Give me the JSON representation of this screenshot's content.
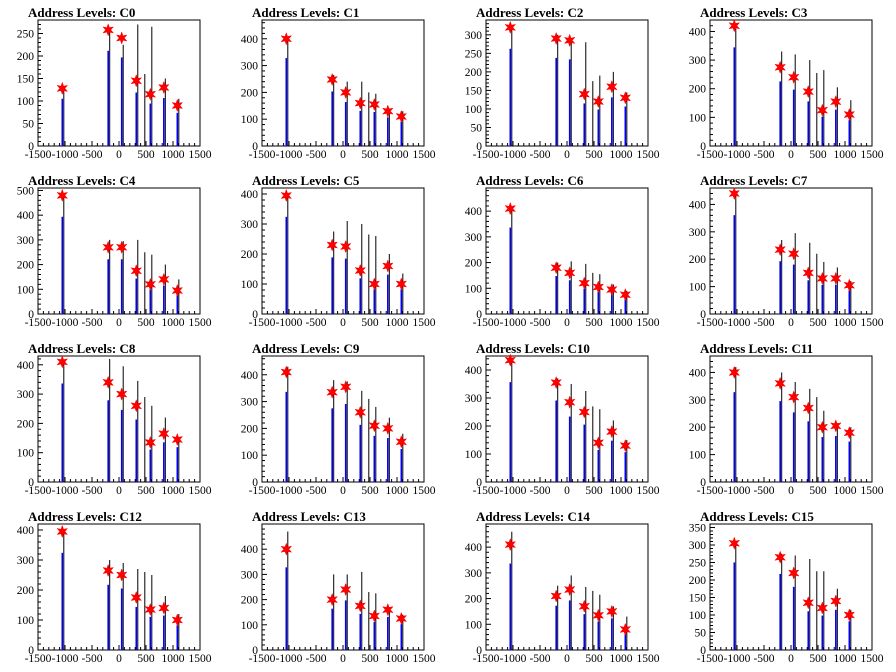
{
  "chart_data": [
    {
      "type": "bar",
      "title": "Address Levels: C0",
      "xlim": [
        -1500,
        1500
      ],
      "ylim": [
        0,
        280
      ],
      "xticks": [
        "-1500",
        "-1000",
        "-500",
        "0",
        "500",
        "1000",
        "1500"
      ],
      "yticks": [
        0,
        50,
        100,
        150,
        200,
        250
      ],
      "peaks_x": [
        -1050,
        -200,
        50,
        320,
        580,
        830,
        1080
      ],
      "peaks_y": [
        128,
        258,
        240,
        145,
        115,
        130,
        90
      ],
      "black_y": [
        122,
        262,
        225,
        270,
        160,
        265,
        150,
        105
      ]
    },
    {
      "type": "bar",
      "title": "Address Levels: C1",
      "xlim": [
        -1500,
        1500
      ],
      "ylim": [
        0,
        470
      ],
      "xticks": [
        "-1500",
        "-1000",
        "-500",
        "0",
        "500",
        "1000",
        "1500"
      ],
      "yticks": [
        0,
        100,
        200,
        300,
        400
      ],
      "peaks_x": [
        -1050,
        -200,
        50,
        320,
        580,
        830,
        1080
      ],
      "peaks_y": [
        400,
        248,
        200,
        160,
        155,
        130,
        110
      ],
      "black_y": [
        395,
        265,
        240,
        240,
        200,
        195,
        140,
        130
      ]
    },
    {
      "type": "bar",
      "title": "Address Levels: C2",
      "xlim": [
        -1500,
        1500
      ],
      "ylim": [
        0,
        340
      ],
      "xticks": [
        "-1500",
        "-1000",
        "-500",
        "0",
        "500",
        "1000",
        "1500"
      ],
      "yticks": [
        0,
        50,
        100,
        150,
        200,
        250,
        300
      ],
      "peaks_x": [
        -1050,
        -200,
        50,
        320,
        580,
        830,
        1080
      ],
      "peaks_y": [
        320,
        290,
        285,
        140,
        120,
        160,
        130
      ],
      "black_y": [
        320,
        300,
        285,
        280,
        175,
        190,
        200,
        145
      ]
    },
    {
      "type": "bar",
      "title": "Address Levels: C3",
      "xlim": [
        -1500,
        1500
      ],
      "ylim": [
        0,
        440
      ],
      "xticks": [
        "-1500",
        "-1000",
        "-500",
        "0",
        "500",
        "1000",
        "1500"
      ],
      "yticks": [
        0,
        100,
        200,
        300,
        400
      ],
      "peaks_x": [
        -1050,
        -200,
        50,
        320,
        580,
        830,
        1080
      ],
      "peaks_y": [
        420,
        275,
        240,
        190,
        125,
        155,
        110
      ],
      "black_y": [
        410,
        330,
        320,
        300,
        255,
        265,
        205,
        160
      ]
    },
    {
      "type": "bar",
      "title": "Address Levels: C4",
      "xlim": [
        -1500,
        1500
      ],
      "ylim": [
        0,
        510
      ],
      "xticks": [
        "-1500",
        "-1000",
        "-500",
        "0",
        "500",
        "1000",
        "1500"
      ],
      "yticks": [
        0,
        100,
        200,
        300,
        400,
        500
      ],
      "peaks_x": [
        -1050,
        -200,
        50,
        320,
        580,
        830,
        1080
      ],
      "peaks_y": [
        480,
        270,
        270,
        175,
        120,
        140,
        95
      ],
      "black_y": [
        485,
        300,
        295,
        300,
        250,
        240,
        200,
        140
      ]
    },
    {
      "type": "bar",
      "title": "Address Levels: C5",
      "xlim": [
        -1500,
        1500
      ],
      "ylim": [
        0,
        420
      ],
      "xticks": [
        "-1500",
        "-1000",
        "-500",
        "0",
        "500",
        "1000",
        "1500"
      ],
      "yticks": [
        0,
        100,
        200,
        300,
        400
      ],
      "peaks_x": [
        -1050,
        -200,
        50,
        320,
        580,
        830,
        1080
      ],
      "peaks_y": [
        395,
        230,
        225,
        145,
        100,
        160,
        100
      ],
      "black_y": [
        395,
        275,
        310,
        300,
        265,
        260,
        200,
        135
      ]
    },
    {
      "type": "bar",
      "title": "Address Levels: C6",
      "xlim": [
        -1500,
        1500
      ],
      "ylim": [
        0,
        490
      ],
      "xticks": [
        "-1500",
        "-1000",
        "-500",
        "0",
        "500",
        "1000",
        "1500"
      ],
      "yticks": [
        0,
        100,
        200,
        300,
        400
      ],
      "peaks_x": [
        -1050,
        -200,
        50,
        320,
        580,
        830,
        1080
      ],
      "peaks_y": [
        410,
        180,
        160,
        120,
        105,
        95,
        75
      ],
      "black_y": [
        410,
        200,
        205,
        195,
        160,
        155,
        115,
        90
      ]
    },
    {
      "type": "bar",
      "title": "Address Levels: C7",
      "xlim": [
        -1500,
        1500
      ],
      "ylim": [
        0,
        460
      ],
      "xticks": [
        "-1500",
        "-1000",
        "-500",
        "0",
        "500",
        "1000",
        "1500"
      ],
      "yticks": [
        0,
        100,
        200,
        300,
        400
      ],
      "peaks_x": [
        -1050,
        -200,
        50,
        320,
        580,
        830,
        1080
      ],
      "peaks_y": [
        440,
        235,
        220,
        150,
        130,
        130,
        105
      ],
      "black_y": [
        440,
        270,
        295,
        260,
        220,
        190,
        170,
        120
      ]
    },
    {
      "type": "bar",
      "title": "Address Levels: C8",
      "xlim": [
        -1500,
        1500
      ],
      "ylim": [
        0,
        430
      ],
      "xticks": [
        "-1500",
        "-1000",
        "-500",
        "0",
        "500",
        "1000",
        "1500"
      ],
      "yticks": [
        0,
        100,
        200,
        300,
        400
      ],
      "peaks_x": [
        -1050,
        -200,
        50,
        320,
        580,
        830,
        1080
      ],
      "peaks_y": [
        410,
        340,
        300,
        260,
        135,
        165,
        145
      ],
      "black_y": [
        410,
        420,
        395,
        345,
        290,
        260,
        220,
        150
      ]
    },
    {
      "type": "bar",
      "title": "Address Levels: C9",
      "xlim": [
        -1500,
        1500
      ],
      "ylim": [
        0,
        470
      ],
      "xticks": [
        "-1500",
        "-1000",
        "-500",
        "0",
        "500",
        "1000",
        "1500"
      ],
      "yticks": [
        0,
        100,
        200,
        300,
        400
      ],
      "peaks_x": [
        -1050,
        -200,
        50,
        320,
        580,
        830,
        1080
      ],
      "peaks_y": [
        410,
        335,
        355,
        260,
        210,
        200,
        150
      ],
      "black_y": [
        430,
        380,
        375,
        340,
        310,
        280,
        240,
        180
      ]
    },
    {
      "type": "bar",
      "title": "Address Levels: C10",
      "xlim": [
        -1500,
        1500
      ],
      "ylim": [
        0,
        450
      ],
      "xticks": [
        "-1500",
        "-1000",
        "-500",
        "0",
        "500",
        "1000",
        "1500"
      ],
      "yticks": [
        0,
        100,
        200,
        300,
        400
      ],
      "peaks_x": [
        -1050,
        -200,
        50,
        320,
        580,
        830,
        1080
      ],
      "peaks_y": [
        435,
        355,
        285,
        250,
        140,
        180,
        130
      ],
      "black_y": [
        440,
        370,
        350,
        325,
        270,
        260,
        220,
        150
      ]
    },
    {
      "type": "bar",
      "title": "Address Levels: C11",
      "xlim": [
        -1500,
        1500
      ],
      "ylim": [
        0,
        460
      ],
      "xticks": [
        "-1500",
        "-1000",
        "-500",
        "0",
        "500",
        "1000",
        "1500"
      ],
      "yticks": [
        0,
        100,
        200,
        300,
        400
      ],
      "peaks_x": [
        -1050,
        -200,
        50,
        320,
        580,
        830,
        1080
      ],
      "peaks_y": [
        400,
        360,
        310,
        270,
        200,
        205,
        180
      ],
      "black_y": [
        420,
        400,
        365,
        340,
        310,
        260,
        215,
        200
      ]
    },
    {
      "type": "bar",
      "title": "Address Levels: C12",
      "xlim": [
        -1500,
        1500
      ],
      "ylim": [
        0,
        420
      ],
      "xticks": [
        "-1500",
        "-1000",
        "-500",
        "0",
        "500",
        "1000",
        "1500"
      ],
      "yticks": [
        0,
        100,
        200,
        300,
        400
      ],
      "peaks_x": [
        -1050,
        -200,
        50,
        320,
        580,
        830,
        1080
      ],
      "peaks_y": [
        395,
        265,
        250,
        175,
        135,
        140,
        100
      ],
      "black_y": [
        400,
        300,
        290,
        270,
        260,
        250,
        180,
        120
      ]
    },
    {
      "type": "bar",
      "title": "Address Levels: C13",
      "xlim": [
        -1500,
        1500
      ],
      "ylim": [
        0,
        500
      ],
      "xticks": [
        "-1500",
        "-1000",
        "-500",
        "0",
        "500",
        "1000",
        "1500"
      ],
      "yticks": [
        0,
        100,
        200,
        300,
        400
      ],
      "peaks_x": [
        -1050,
        -200,
        50,
        320,
        580,
        830,
        1080
      ],
      "peaks_y": [
        400,
        200,
        240,
        175,
        135,
        160,
        125
      ],
      "black_y": [
        470,
        300,
        300,
        310,
        230,
        225,
        170,
        140
      ]
    },
    {
      "type": "bar",
      "title": "Address Levels: C14",
      "xlim": [
        -1500,
        1500
      ],
      "ylim": [
        0,
        490
      ],
      "xticks": [
        "-1500",
        "-1000",
        "-500",
        "0",
        "500",
        "1000",
        "1500"
      ],
      "yticks": [
        0,
        100,
        200,
        300,
        400
      ],
      "peaks_x": [
        -1050,
        -200,
        50,
        320,
        580,
        830,
        1080
      ],
      "peaks_y": [
        410,
        210,
        235,
        170,
        135,
        150,
        80
      ],
      "black_y": [
        460,
        250,
        290,
        245,
        230,
        215,
        170,
        130
      ]
    },
    {
      "type": "bar",
      "title": "Address Levels: C15",
      "xlim": [
        -1500,
        1500
      ],
      "ylim": [
        0,
        360
      ],
      "xticks": [
        "-1500",
        "-1000",
        "-500",
        "0",
        "500",
        "1000",
        "1500"
      ],
      "yticks": [
        0,
        50,
        100,
        150,
        200,
        250,
        300,
        350
      ],
      "peaks_x": [
        -1050,
        -200,
        50,
        320,
        580,
        830,
        1080
      ],
      "peaks_y": [
        305,
        265,
        220,
        135,
        120,
        140,
        100
      ],
      "black_y": [
        310,
        275,
        270,
        260,
        225,
        225,
        175,
        115
      ]
    }
  ],
  "colors": {
    "blue_series": "#0000ff",
    "black_series": "#000000",
    "marker": "#ff0000"
  }
}
